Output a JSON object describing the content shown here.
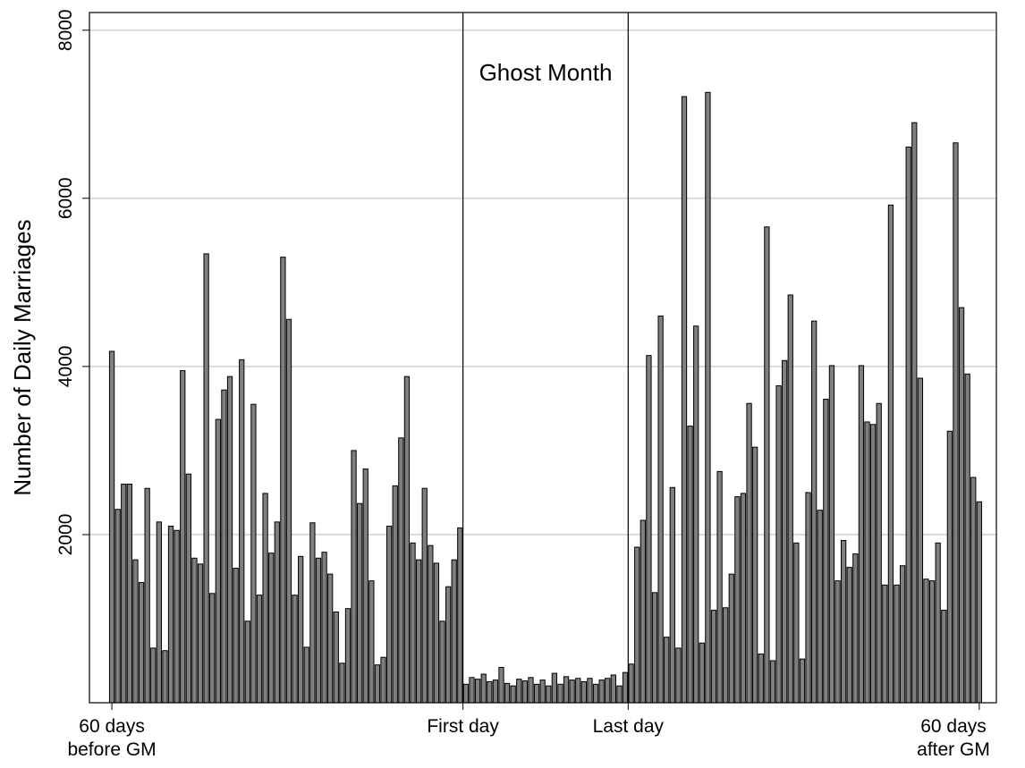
{
  "chart_data": {
    "type": "bar",
    "title": "Ghost Month",
    "y_label": "Number of Daily Marriages",
    "x": [
      -60,
      -59,
      -58,
      -57,
      -56,
      -55,
      -54,
      -53,
      -52,
      -51,
      -50,
      -49,
      -48,
      -47,
      -46,
      -45,
      -44,
      -43,
      -42,
      -41,
      -40,
      -39,
      -38,
      -37,
      -36,
      -35,
      -34,
      -33,
      -32,
      -31,
      -30,
      -29,
      -28,
      -27,
      -26,
      -25,
      -24,
      -23,
      -22,
      -21,
      -20,
      -19,
      -18,
      -17,
      -16,
      -15,
      -14,
      -13,
      -12,
      -11,
      -10,
      -9,
      -8,
      -7,
      -6,
      -5,
      -4,
      -3,
      -2,
      -1,
      0,
      1,
      2,
      3,
      4,
      5,
      6,
      7,
      8,
      9,
      10,
      11,
      12,
      13,
      14,
      15,
      16,
      17,
      18,
      19,
      20,
      21,
      22,
      23,
      24,
      25,
      26,
      27,
      28,
      29,
      30,
      31,
      32,
      33,
      34,
      35,
      36,
      37,
      38,
      39,
      40,
      41,
      42,
      43,
      44,
      45,
      46,
      47,
      48,
      49,
      50,
      51,
      52,
      53,
      54,
      55,
      56,
      57,
      58,
      59,
      60,
      61,
      62,
      63,
      64,
      65,
      66,
      67,
      68,
      69,
      70,
      71,
      72,
      73,
      74,
      75,
      76,
      77,
      78,
      79,
      80,
      81,
      82,
      83,
      84,
      85,
      86,
      87
    ],
    "values": [
      4180,
      2300,
      2600,
      2600,
      1700,
      1430,
      2550,
      650,
      2150,
      620,
      2100,
      2050,
      3950,
      2720,
      1720,
      1650,
      5340,
      1300,
      3370,
      3720,
      3880,
      1600,
      4080,
      970,
      3550,
      1280,
      2490,
      1780,
      2150,
      5300,
      4560,
      1280,
      1740,
      660,
      2140,
      1720,
      1790,
      1530,
      1080,
      470,
      1120,
      3000,
      2370,
      2780,
      1450,
      450,
      540,
      2100,
      2580,
      3150,
      3880,
      1900,
      1700,
      2550,
      1870,
      1660,
      970,
      1380,
      1700,
      2080,
      220,
      300,
      280,
      340,
      250,
      270,
      420,
      230,
      200,
      280,
      260,
      300,
      220,
      270,
      200,
      350,
      220,
      310,
      270,
      290,
      250,
      290,
      220,
      270,
      290,
      330,
      200,
      360,
      460,
      1850,
      2170,
      4130,
      1310,
      4600,
      780,
      2560,
      650,
      7210,
      3290,
      4480,
      710,
      7260,
      1100,
      2750,
      1130,
      1530,
      2450,
      2490,
      3560,
      3040,
      580,
      5660,
      500,
      3770,
      4070,
      4850,
      1900,
      520,
      2500,
      4540,
      2290,
      3610,
      4010,
      1450,
      1930,
      1610,
      1770,
      4010,
      3340,
      3310,
      3560,
      1400,
      5920,
      1400,
      1630,
      6610,
      6900,
      3860,
      1470,
      1450,
      1900,
      1100,
      3230,
      6660,
      4700,
      3910,
      2680,
      2390
    ],
    "color": "#7f7f7f",
    "xlim": [
      -63.8,
      89.9
    ],
    "xticks": [
      {
        "value": -60,
        "label": "60 days\nbefore GM"
      },
      {
        "value": 0,
        "label": "First day"
      },
      {
        "value": 28,
        "label": "Last day"
      },
      {
        "value": 87,
        "label": "60 days\nafter GM"
      }
    ],
    "ylim": [
      0,
      8210
    ],
    "yticks": [
      2000,
      4000,
      6000,
      8000
    ],
    "grid": true
  }
}
